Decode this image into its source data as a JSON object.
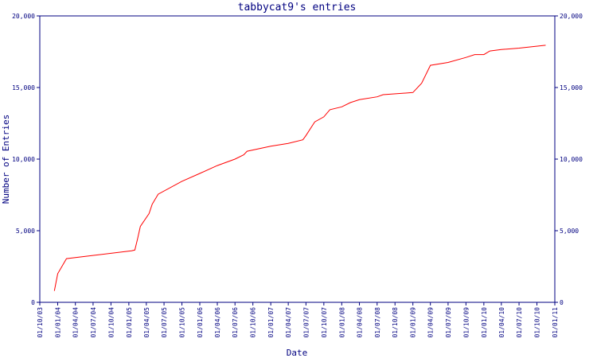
{
  "chart_data": {
    "type": "line",
    "title": "tabbycat9's entries",
    "x_label": "Date",
    "y_label": "Number of Entries",
    "x": [
      "15/12/03",
      "01/01/04",
      "15/02/04",
      "15/01/05",
      "01/02/05",
      "15/02/05",
      "01/03/05",
      "15/04/05",
      "01/05/05",
      "01/06/05",
      "01/10/05",
      "01/01/06",
      "01/04/06",
      "01/07/06",
      "15/08/06",
      "01/09/06",
      "01/01/07",
      "01/04/07",
      "15/06/07",
      "01/07/07",
      "15/08/07",
      "01/10/07",
      "01/11/07",
      "01/01/08",
      "15/02/08",
      "01/04/08",
      "01/07/08",
      "01/08/08",
      "01/01/09",
      "15/02/09",
      "01/04/09",
      "01/07/09",
      "01/10/09",
      "15/11/09",
      "01/01/10",
      "01/02/10",
      "01/04/10",
      "01/07/10",
      "15/11/10"
    ],
    "series": [
      {
        "name": "entries",
        "color": "#ff0000",
        "values": [
          800,
          2000,
          3050,
          3600,
          3650,
          4450,
          5300,
          6200,
          6850,
          7550,
          8450,
          9000,
          9550,
          10000,
          10300,
          10550,
          10900,
          11100,
          11350,
          11650,
          12600,
          12950,
          13450,
          13650,
          13950,
          14150,
          14350,
          14500,
          14650,
          15300,
          16550,
          16750,
          17100,
          17300,
          17300,
          17550,
          17650,
          17750,
          17950
        ]
      }
    ],
    "xlim": [
      "01/10/03",
      "01/01/11"
    ],
    "xticks": [
      "01/10/03",
      "01/01/04",
      "01/04/04",
      "01/07/04",
      "01/10/04",
      "01/01/05",
      "01/04/05",
      "01/07/05",
      "01/10/05",
      "01/01/06",
      "01/04/06",
      "01/07/06",
      "01/10/06",
      "01/01/07",
      "01/04/07",
      "01/07/07",
      "01/10/07",
      "01/01/08",
      "01/04/08",
      "01/07/08",
      "01/10/08",
      "01/01/09",
      "01/04/09",
      "01/07/09",
      "01/10/09",
      "01/01/10",
      "01/04/10",
      "01/07/10",
      "01/10/10",
      "01/01/11"
    ],
    "ylim": [
      0,
      20000
    ],
    "yticks": [
      0,
      {
        "value": 5000,
        "label": "5,000"
      },
      {
        "value": 10000,
        "label": "10,000"
      },
      {
        "value": 15000,
        "label": "15,000"
      },
      {
        "value": 20000,
        "label": "20,000"
      }
    ]
  }
}
